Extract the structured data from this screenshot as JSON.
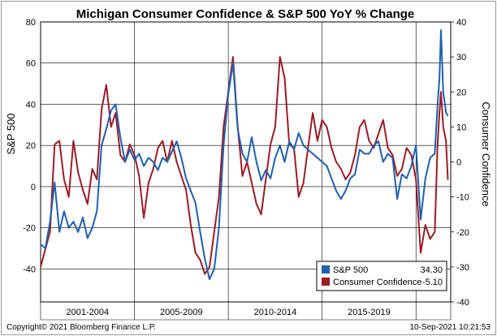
{
  "chart_data": {
    "type": "line",
    "title": "Michigan Consumer Confidence & S&P 500 YoY % Change",
    "ylabel_left": "S&P 500",
    "ylabel_right": "Consumer Confidence",
    "ylim_left": [
      -56,
      80
    ],
    "ylim_right": [
      -40,
      40
    ],
    "yticks_left": [
      80,
      60,
      40,
      20,
      0,
      -20,
      -40
    ],
    "yticks_right": [
      40,
      30,
      20,
      10,
      0,
      -10,
      -20,
      -30,
      -40
    ],
    "x_period_labels": [
      "2001-2004",
      "2005-2009",
      "2010-2014",
      "2015-2019"
    ],
    "grid": true,
    "legend_position": "bottom-right",
    "series": [
      {
        "name": "S&P 500",
        "axis": "left",
        "color": "#1f5fb0",
        "last_value": "34.30",
        "points": [
          [
            2000.0,
            -28
          ],
          [
            2000.25,
            -30
          ],
          [
            2000.5,
            -17
          ],
          [
            2000.75,
            2
          ],
          [
            2001.0,
            -22
          ],
          [
            2001.25,
            -12
          ],
          [
            2001.5,
            -20
          ],
          [
            2001.75,
            -17
          ],
          [
            2002.0,
            -22
          ],
          [
            2002.25,
            -15
          ],
          [
            2002.5,
            -25
          ],
          [
            2002.75,
            -20
          ],
          [
            2003.0,
            -12
          ],
          [
            2003.25,
            20
          ],
          [
            2003.5,
            28
          ],
          [
            2003.75,
            37
          ],
          [
            2004.0,
            40
          ],
          [
            2004.25,
            24
          ],
          [
            2004.5,
            12
          ],
          [
            2004.75,
            18
          ],
          [
            2005.0,
            13
          ],
          [
            2005.25,
            16
          ],
          [
            2005.5,
            10
          ],
          [
            2005.75,
            14
          ],
          [
            2006.0,
            12
          ],
          [
            2006.25,
            8
          ],
          [
            2006.5,
            14
          ],
          [
            2006.75,
            12
          ],
          [
            2007.0,
            17
          ],
          [
            2007.25,
            22
          ],
          [
            2007.5,
            14
          ],
          [
            2007.75,
            4
          ],
          [
            2008.0,
            -2
          ],
          [
            2008.25,
            -8
          ],
          [
            2008.5,
            -22
          ],
          [
            2008.75,
            -35
          ],
          [
            2009.0,
            -45
          ],
          [
            2009.25,
            -40
          ],
          [
            2009.5,
            -20
          ],
          [
            2009.75,
            20
          ],
          [
            2010.0,
            45
          ],
          [
            2010.25,
            60
          ],
          [
            2010.5,
            28
          ],
          [
            2010.75,
            16
          ],
          [
            2011.0,
            12
          ],
          [
            2011.25,
            24
          ],
          [
            2011.5,
            12
          ],
          [
            2011.75,
            3
          ],
          [
            2012.0,
            8
          ],
          [
            2012.25,
            4
          ],
          [
            2012.5,
            14
          ],
          [
            2012.75,
            20
          ],
          [
            2013.0,
            12
          ],
          [
            2013.25,
            22
          ],
          [
            2013.5,
            18
          ],
          [
            2013.75,
            26
          ],
          [
            2014.0,
            20
          ],
          [
            2014.25,
            18
          ],
          [
            2014.5,
            16
          ],
          [
            2014.75,
            14
          ],
          [
            2015.0,
            12
          ],
          [
            2015.25,
            10
          ],
          [
            2015.5,
            4
          ],
          [
            2015.75,
            -2
          ],
          [
            2016.0,
            -6
          ],
          [
            2016.25,
            -2
          ],
          [
            2016.5,
            4
          ],
          [
            2016.75,
            6
          ],
          [
            2017.0,
            18
          ],
          [
            2017.25,
            16
          ],
          [
            2017.5,
            16
          ],
          [
            2017.75,
            20
          ],
          [
            2018.0,
            22
          ],
          [
            2018.25,
            12
          ],
          [
            2018.5,
            16
          ],
          [
            2018.75,
            14
          ],
          [
            2019.0,
            -6
          ],
          [
            2019.25,
            6
          ],
          [
            2019.5,
            4
          ],
          [
            2019.75,
            10
          ],
          [
            2020.0,
            20
          ],
          [
            2020.25,
            -16
          ],
          [
            2020.5,
            4
          ],
          [
            2020.75,
            14
          ],
          [
            2021.0,
            16
          ],
          [
            2021.15,
            40
          ],
          [
            2021.25,
            52
          ],
          [
            2021.33,
            76
          ],
          [
            2021.45,
            46
          ],
          [
            2021.6,
            36
          ],
          [
            2021.7,
            34.3
          ]
        ]
      },
      {
        "name": "Consumer Confidence",
        "axis": "right",
        "color": "#9c1c24",
        "last_value": "-5.10",
        "points": [
          [
            2000.0,
            -30
          ],
          [
            2000.25,
            -25
          ],
          [
            2000.5,
            -20
          ],
          [
            2000.75,
            5
          ],
          [
            2001.0,
            6
          ],
          [
            2001.25,
            -5
          ],
          [
            2001.5,
            -10
          ],
          [
            2001.75,
            6
          ],
          [
            2002.0,
            -3
          ],
          [
            2002.25,
            -8
          ],
          [
            2002.5,
            -12
          ],
          [
            2002.75,
            -2
          ],
          [
            2003.0,
            -5
          ],
          [
            2003.25,
            15
          ],
          [
            2003.5,
            22
          ],
          [
            2003.75,
            10
          ],
          [
            2004.0,
            14
          ],
          [
            2004.25,
            2
          ],
          [
            2004.5,
            0
          ],
          [
            2004.75,
            5
          ],
          [
            2005.0,
            2
          ],
          [
            2005.25,
            -4
          ],
          [
            2005.5,
            -16
          ],
          [
            2005.75,
            -6
          ],
          [
            2006.0,
            -2
          ],
          [
            2006.25,
            4
          ],
          [
            2006.5,
            6
          ],
          [
            2006.75,
            0
          ],
          [
            2007.0,
            6
          ],
          [
            2007.25,
            0
          ],
          [
            2007.5,
            -4
          ],
          [
            2007.75,
            -8
          ],
          [
            2008.0,
            -18
          ],
          [
            2008.25,
            -26
          ],
          [
            2008.5,
            -28
          ],
          [
            2008.75,
            -32
          ],
          [
            2009.0,
            -30
          ],
          [
            2009.25,
            -20
          ],
          [
            2009.5,
            -10
          ],
          [
            2009.75,
            10
          ],
          [
            2010.0,
            20
          ],
          [
            2010.25,
            30
          ],
          [
            2010.5,
            10
          ],
          [
            2010.75,
            -4
          ],
          [
            2011.0,
            0
          ],
          [
            2011.25,
            -6
          ],
          [
            2011.5,
            -12
          ],
          [
            2011.75,
            -15
          ],
          [
            2012.0,
            -5
          ],
          [
            2012.25,
            5
          ],
          [
            2012.5,
            10
          ],
          [
            2012.75,
            30
          ],
          [
            2013.0,
            24
          ],
          [
            2013.25,
            5
          ],
          [
            2013.5,
            4
          ],
          [
            2013.75,
            -10
          ],
          [
            2014.0,
            -6
          ],
          [
            2014.25,
            4
          ],
          [
            2014.5,
            14
          ],
          [
            2014.75,
            6
          ],
          [
            2015.0,
            12
          ],
          [
            2015.25,
            10
          ],
          [
            2015.5,
            4
          ],
          [
            2015.75,
            0
          ],
          [
            2016.0,
            -2
          ],
          [
            2016.25,
            -5
          ],
          [
            2016.5,
            -3
          ],
          [
            2016.75,
            2
          ],
          [
            2017.0,
            10
          ],
          [
            2017.25,
            12
          ],
          [
            2017.5,
            6
          ],
          [
            2017.75,
            4
          ],
          [
            2018.0,
            8
          ],
          [
            2018.25,
            12
          ],
          [
            2018.5,
            4
          ],
          [
            2018.75,
            2
          ],
          [
            2019.0,
            -4
          ],
          [
            2019.25,
            -2
          ],
          [
            2019.5,
            4
          ],
          [
            2019.75,
            2
          ],
          [
            2020.0,
            -5
          ],
          [
            2020.25,
            -26
          ],
          [
            2020.5,
            -18
          ],
          [
            2020.75,
            -22
          ],
          [
            2021.0,
            -20
          ],
          [
            2021.15,
            5
          ],
          [
            2021.25,
            14
          ],
          [
            2021.33,
            20
          ],
          [
            2021.45,
            10
          ],
          [
            2021.6,
            6
          ],
          [
            2021.7,
            -5.1
          ]
        ]
      }
    ]
  },
  "footer": {
    "copyright": "Copyright© 2021 Bloomberg Finance L.P.",
    "timestamp": "10-Sep-2021 10:21:53"
  }
}
